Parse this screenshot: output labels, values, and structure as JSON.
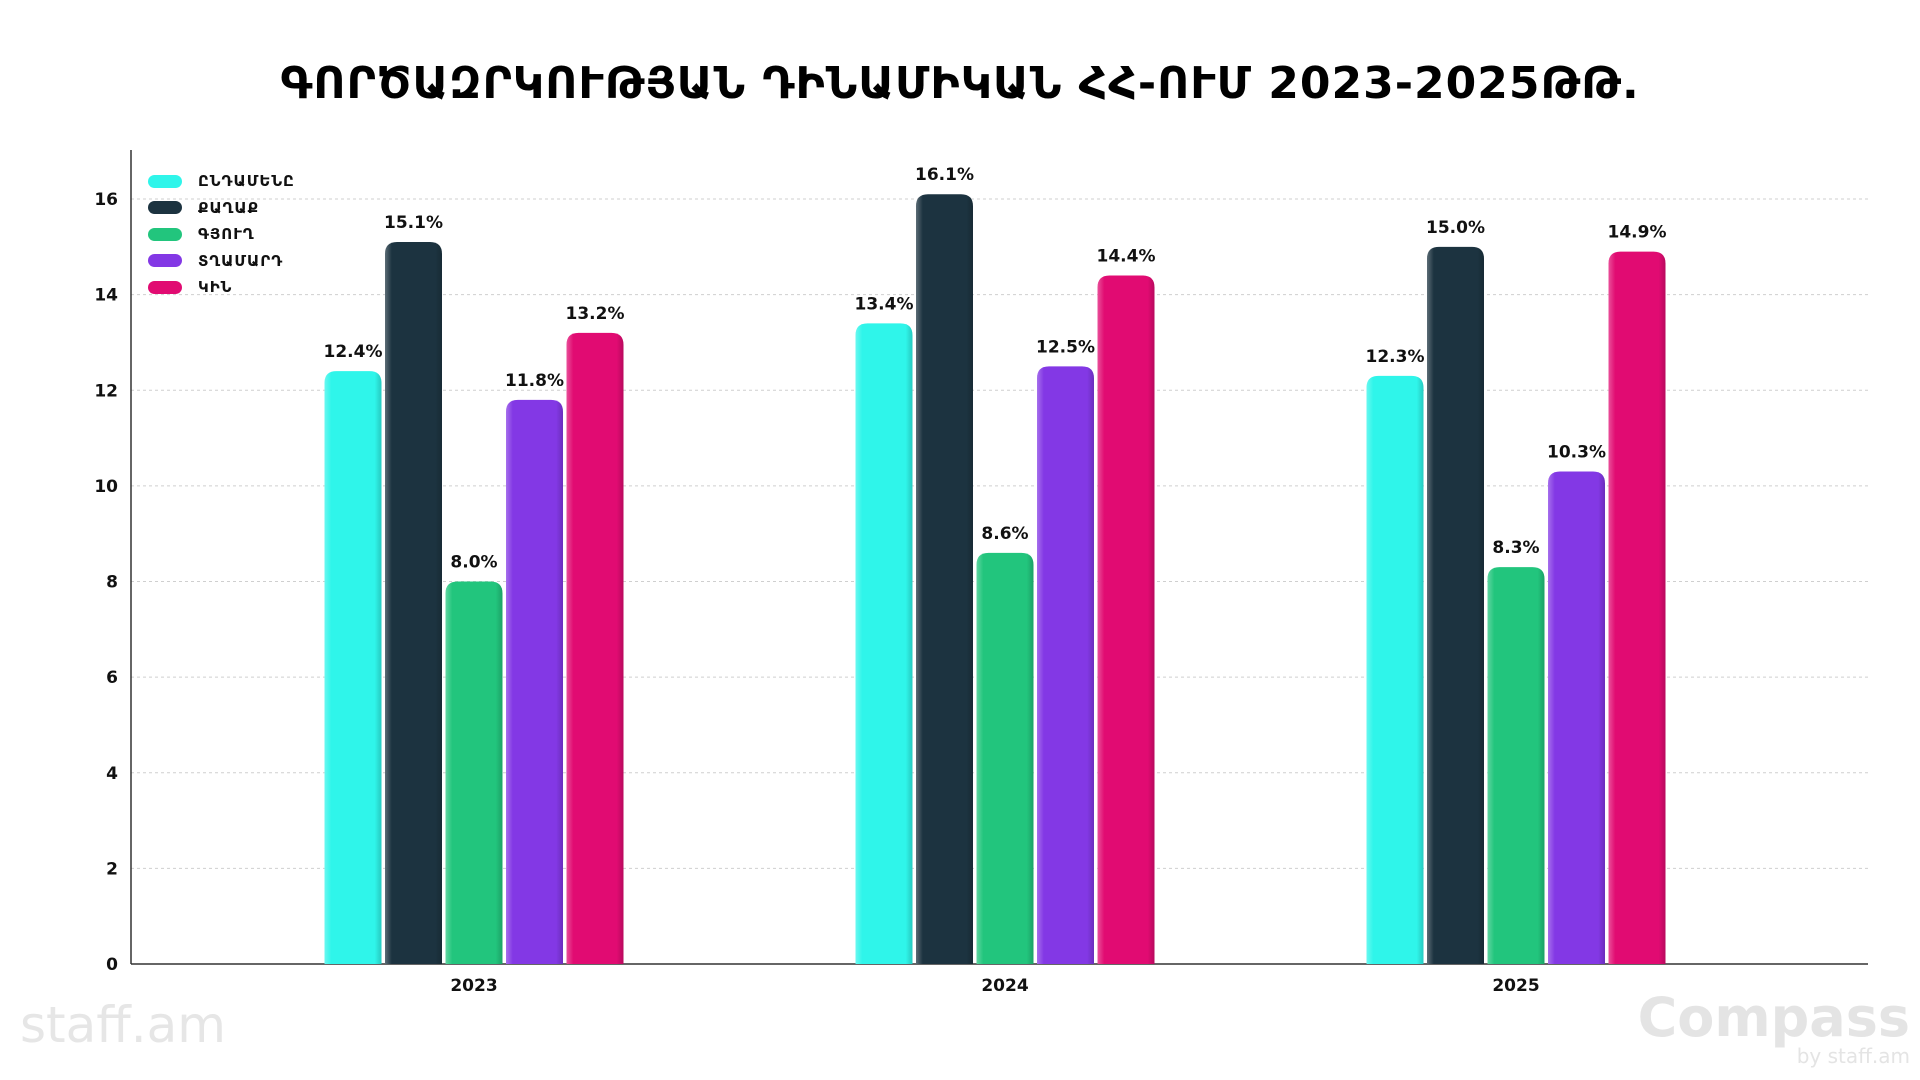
{
  "title": "ԳՈՐԾԱԶՐԿՈՒԹՅԱՆ ԴԻՆԱՄԻԿԱՆ ՀՀ-ՈՒՄ 2023-2025ԹԹ.",
  "logos": {
    "left": "staff.am",
    "right": "Compass",
    "right_sub": "by staff.am"
  },
  "chart_data": {
    "type": "bar",
    "title": "ԳՈՐԾԱԶՐԿՈՒԹՅԱՆ ԴԻՆԱՄԻԿԱՆ ՀՀ-ՈՒՄ 2023-2025ԹԹ.",
    "xlabel": "",
    "ylabel": "",
    "categories": [
      "2023",
      "2024",
      "2025"
    ],
    "ylim": [
      0,
      17
    ],
    "yticks": [
      0,
      2,
      4,
      6,
      8,
      10,
      12,
      14,
      16
    ],
    "grid": true,
    "legend_position": "top-left",
    "series": [
      {
        "name": "ԸՆԴԱՄԵՆԸ",
        "color": "#2ff5ea",
        "values": [
          12.4,
          13.4,
          12.3
        ],
        "labels": [
          "12.4%",
          "13.4%",
          "12.3%"
        ]
      },
      {
        "name": "ՔԱՂԱՔ",
        "color": "#1c3340",
        "values": [
          15.1,
          16.1,
          15.0
        ],
        "labels": [
          "15.1%",
          "16.1%",
          "15.0%"
        ]
      },
      {
        "name": "ԳՅՈՒՂ",
        "color": "#22c57d",
        "values": [
          8.0,
          8.6,
          8.3
        ],
        "labels": [
          "8.0%",
          "8.6%",
          "8.3%"
        ]
      },
      {
        "name": "ՏՂԱՄԱՐԴ",
        "color": "#8338e5",
        "values": [
          11.8,
          12.5,
          10.3
        ],
        "labels": [
          "11.8%",
          "12.5%",
          "10.3%"
        ]
      },
      {
        "name": "ԿԻՆ",
        "color": "#e10b72",
        "values": [
          13.2,
          14.4,
          14.9
        ],
        "labels": [
          "13.2%",
          "14.4%",
          "14.9%"
        ]
      }
    ]
  }
}
